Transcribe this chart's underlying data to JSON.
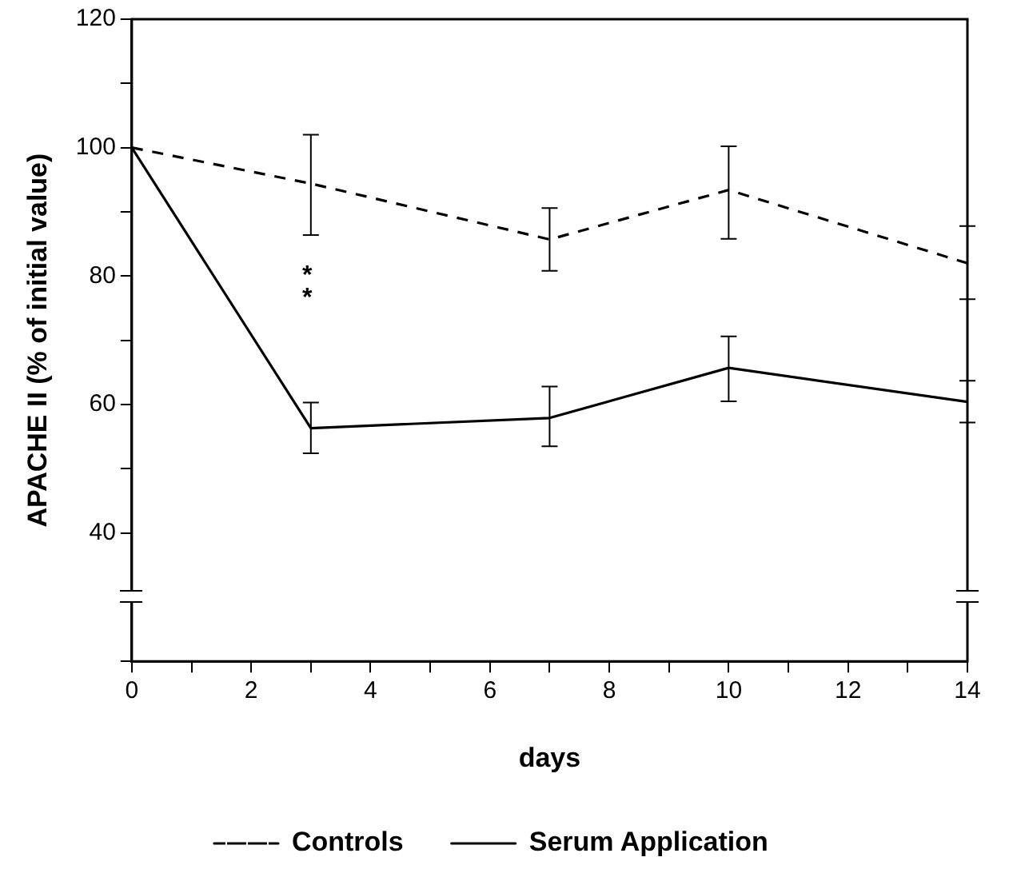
{
  "chart_data": {
    "type": "line",
    "xlabel": "days",
    "ylabel": "APACHE II (% of initial value)",
    "x": [
      0,
      3,
      7,
      10,
      14
    ],
    "series": [
      {
        "name": "Controls",
        "color": "#000000",
        "line_style": "dashed",
        "values": [
          100,
          94.4,
          85.7,
          93.4,
          82
        ],
        "errors": [
          null,
          [
            86.4,
            102
          ],
          [
            80.8,
            90.6
          ],
          [
            85.8,
            100.2
          ],
          [
            76.4,
            87.8
          ]
        ]
      },
      {
        "name": "Serum Application",
        "color": "#000000",
        "line_style": "solid",
        "values": [
          100,
          56.3,
          57.9,
          65.7,
          60.4
        ],
        "errors": [
          null,
          [
            52.4,
            60.3
          ],
          [
            53.5,
            62.8
          ],
          [
            60.5,
            70.6
          ],
          [
            57.2,
            63.7
          ]
        ]
      }
    ],
    "xlim": [
      0,
      14
    ],
    "xticks": [
      0,
      {
        "value": 1,
        "label": null
      },
      2,
      {
        "value": 3,
        "label": null
      },
      4,
      {
        "value": 5,
        "label": null
      },
      6,
      {
        "value": 7,
        "label": null
      },
      8,
      {
        "value": 9,
        "label": null
      },
      10,
      {
        "value": 11,
        "label": null
      },
      12,
      {
        "value": 13,
        "label": null
      },
      14
    ],
    "ylim": [
      20,
      120
    ],
    "yticks": [
      {
        "value": 20,
        "label": null
      },
      40,
      {
        "value": 50,
        "label": null
      },
      60,
      {
        "value": 70,
        "label": null
      },
      80,
      {
        "value": 90,
        "label": null
      },
      100,
      {
        "value": 110,
        "label": null
      },
      120
    ],
    "annotations": [
      "**"
    ],
    "grid": false,
    "legend": "bottom",
    "marker": "none"
  }
}
